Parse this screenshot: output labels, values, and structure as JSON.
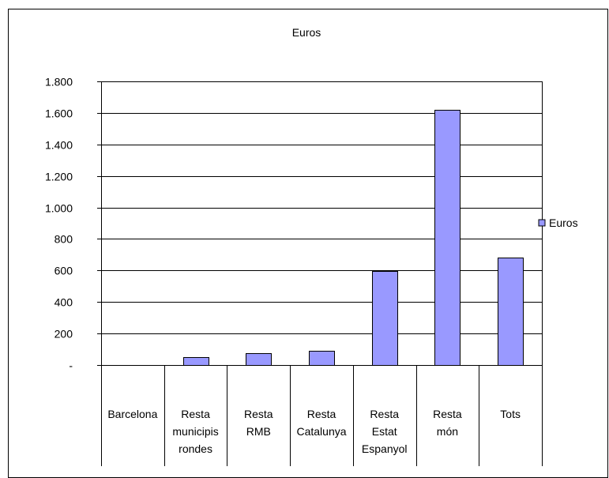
{
  "chart_data": {
    "type": "bar",
    "title": "Euros",
    "categories": [
      [
        "Barcelona"
      ],
      [
        "Resta",
        "municipis",
        "rondes"
      ],
      [
        "Resta",
        "RMB"
      ],
      [
        "Resta",
        "Catalunya"
      ],
      [
        "Resta",
        "Estat",
        "Espanyol"
      ],
      [
        "Resta",
        "món"
      ],
      [
        "Tots"
      ]
    ],
    "series": [
      {
        "name": "Euros",
        "values": [
          0,
          50,
          75,
          92,
          597,
          1622,
          680
        ]
      }
    ],
    "ylim": [
      0,
      1800
    ],
    "yticks": [
      0,
      200,
      400,
      600,
      800,
      1000,
      1200,
      1400,
      1600,
      1800
    ],
    "ytick_labels": [
      "-",
      "200",
      "400",
      "600",
      "800",
      "1.000",
      "1.200",
      "1.400",
      "1.600",
      "1.800"
    ],
    "grid": true,
    "legend_position": "right",
    "colors": {
      "bar_fill": "#9999ff",
      "bar_stroke": "#000000",
      "grid": "#000000",
      "background": "#ffffff"
    }
  }
}
